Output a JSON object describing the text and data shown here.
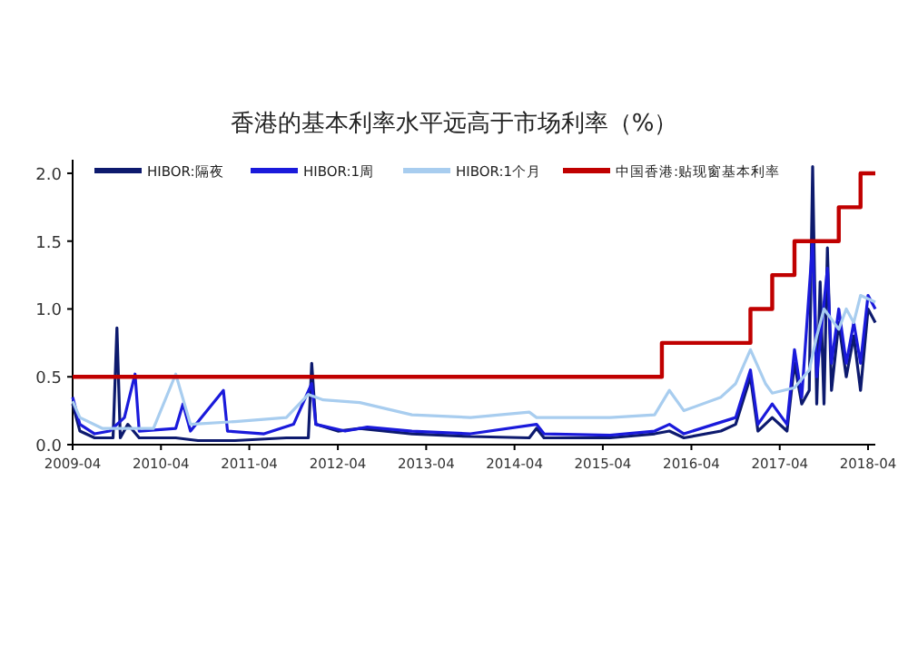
{
  "chart_data": {
    "type": "line",
    "title": "香港的基本利率水平远高于市场利率（%）",
    "legend": "top",
    "grid": false,
    "xlim": [
      "2009-04",
      "2018-05"
    ],
    "xticks": [
      "2009-04",
      "2010-04",
      "2011-04",
      "2012-04",
      "2013-04",
      "2014-04",
      "2015-04",
      "2016-04",
      "2017-04",
      "2018-04"
    ],
    "ylim": [
      0,
      2.1
    ],
    "yticks": [
      {
        "value": 0,
        "label": "0.0"
      },
      0.5,
      {
        "value": 1,
        "label": "1.0"
      },
      1.5,
      {
        "value": 2,
        "label": "2.0"
      }
    ],
    "series": [
      {
        "name": "HIBOR:隔夜",
        "color": "#0d1a6e",
        "x": [
          "2009-04-01",
          "2009-05-01",
          "2009-07-01",
          "2009-09-15",
          "2009-10-01",
          "2009-10-15",
          "2009-11-15",
          "2010-01-01",
          "2010-06-01",
          "2010-09-01",
          "2011-02-01",
          "2011-09-01",
          "2011-12-01",
          "2011-12-15",
          "2012-01-01",
          "2012-04-01",
          "2012-07-01",
          "2013-02-01",
          "2013-10-01",
          "2014-06-01",
          "2014-07-01",
          "2014-08-01",
          "2015-05-01",
          "2015-11-01",
          "2016-01-01",
          "2016-03-01",
          "2016-08-01",
          "2016-10-01",
          "2016-12-01",
          "2017-01-01",
          "2017-03-01",
          "2017-05-01",
          "2017-06-01",
          "2017-07-01",
          "2017-08-01",
          "2017-08-15",
          "2017-09-01",
          "2017-09-15",
          "2017-10-01",
          "2017-10-15",
          "2017-11-01",
          "2017-12-01",
          "2018-01-01",
          "2018-02-01",
          "2018-03-01",
          "2018-04-01",
          "2018-05-01"
        ],
        "values": [
          0.3,
          0.1,
          0.05,
          0.05,
          0.86,
          0.05,
          0.15,
          0.05,
          0.05,
          0.03,
          0.03,
          0.05,
          0.05,
          0.6,
          0.15,
          0.1,
          0.12,
          0.08,
          0.06,
          0.05,
          0.12,
          0.05,
          0.05,
          0.08,
          0.1,
          0.05,
          0.1,
          0.15,
          0.5,
          0.1,
          0.2,
          0.1,
          0.6,
          0.3,
          0.4,
          2.05,
          0.3,
          1.2,
          0.3,
          1.45,
          0.4,
          0.9,
          0.5,
          0.8,
          0.4,
          1.0,
          0.9
        ]
      },
      {
        "name": "HIBOR:1周",
        "color": "#1a1adb",
        "x": [
          "2009-04-01",
          "2009-05-01",
          "2009-07-01",
          "2009-09-01",
          "2009-11-01",
          "2009-12-15",
          "2010-01-01",
          "2010-06-01",
          "2010-07-01",
          "2010-08-01",
          "2010-12-15",
          "2011-01-01",
          "2011-06-01",
          "2011-10-01",
          "2011-12-15",
          "2012-01-01",
          "2012-05-01",
          "2012-08-01",
          "2013-02-01",
          "2013-10-01",
          "2014-07-01",
          "2014-08-01",
          "2015-05-01",
          "2015-11-01",
          "2016-01-01",
          "2016-03-01",
          "2016-10-01",
          "2016-12-01",
          "2017-01-01",
          "2017-03-01",
          "2017-05-01",
          "2017-06-01",
          "2017-07-01",
          "2017-08-15",
          "2017-09-01",
          "2017-10-15",
          "2017-11-01",
          "2017-12-01",
          "2018-01-01",
          "2018-02-01",
          "2018-03-01",
          "2018-04-01",
          "2018-05-01"
        ],
        "values": [
          0.35,
          0.15,
          0.08,
          0.1,
          0.2,
          0.52,
          0.1,
          0.12,
          0.3,
          0.1,
          0.4,
          0.1,
          0.08,
          0.15,
          0.45,
          0.15,
          0.1,
          0.13,
          0.1,
          0.08,
          0.15,
          0.08,
          0.07,
          0.1,
          0.15,
          0.08,
          0.2,
          0.55,
          0.15,
          0.3,
          0.15,
          0.7,
          0.35,
          1.5,
          0.5,
          1.3,
          0.6,
          1.0,
          0.6,
          0.9,
          0.6,
          1.1,
          1.0
        ]
      },
      {
        "name": "HIBOR:1个月",
        "color": "#a8cdef",
        "x": [
          "2009-04",
          "2009-05",
          "2009-08",
          "2009-10",
          "2010-03",
          "2010-06",
          "2010-08",
          "2011-02",
          "2011-09",
          "2011-12",
          "2012-02",
          "2012-07",
          "2013-02",
          "2013-10",
          "2014-06",
          "2014-07",
          "2015-05",
          "2015-11",
          "2016-01",
          "2016-03",
          "2016-08",
          "2016-10",
          "2016-12",
          "2017-02",
          "2017-03",
          "2017-06",
          "2017-08",
          "2017-09",
          "2017-10",
          "2017-12",
          "2018-01",
          "2018-02",
          "2018-03",
          "2018-05"
        ],
        "values": [
          0.32,
          0.2,
          0.12,
          0.12,
          0.12,
          0.52,
          0.15,
          0.17,
          0.2,
          0.37,
          0.33,
          0.31,
          0.22,
          0.2,
          0.24,
          0.2,
          0.2,
          0.22,
          0.4,
          0.25,
          0.35,
          0.45,
          0.7,
          0.45,
          0.38,
          0.42,
          0.55,
          0.8,
          1.0,
          0.85,
          1.0,
          0.9,
          1.1,
          1.05
        ]
      },
      {
        "name": "中国香港:贴现窗基本利率",
        "type": "step",
        "color": "#c00000",
        "x": [
          "2009-04",
          "2015-12",
          "2016-12",
          "2017-03",
          "2017-06",
          "2017-12",
          "2018-03",
          "2018-05"
        ],
        "values": [
          0.5,
          0.75,
          1.0,
          1.25,
          1.5,
          1.75,
          2.0,
          2.0
        ]
      }
    ]
  }
}
